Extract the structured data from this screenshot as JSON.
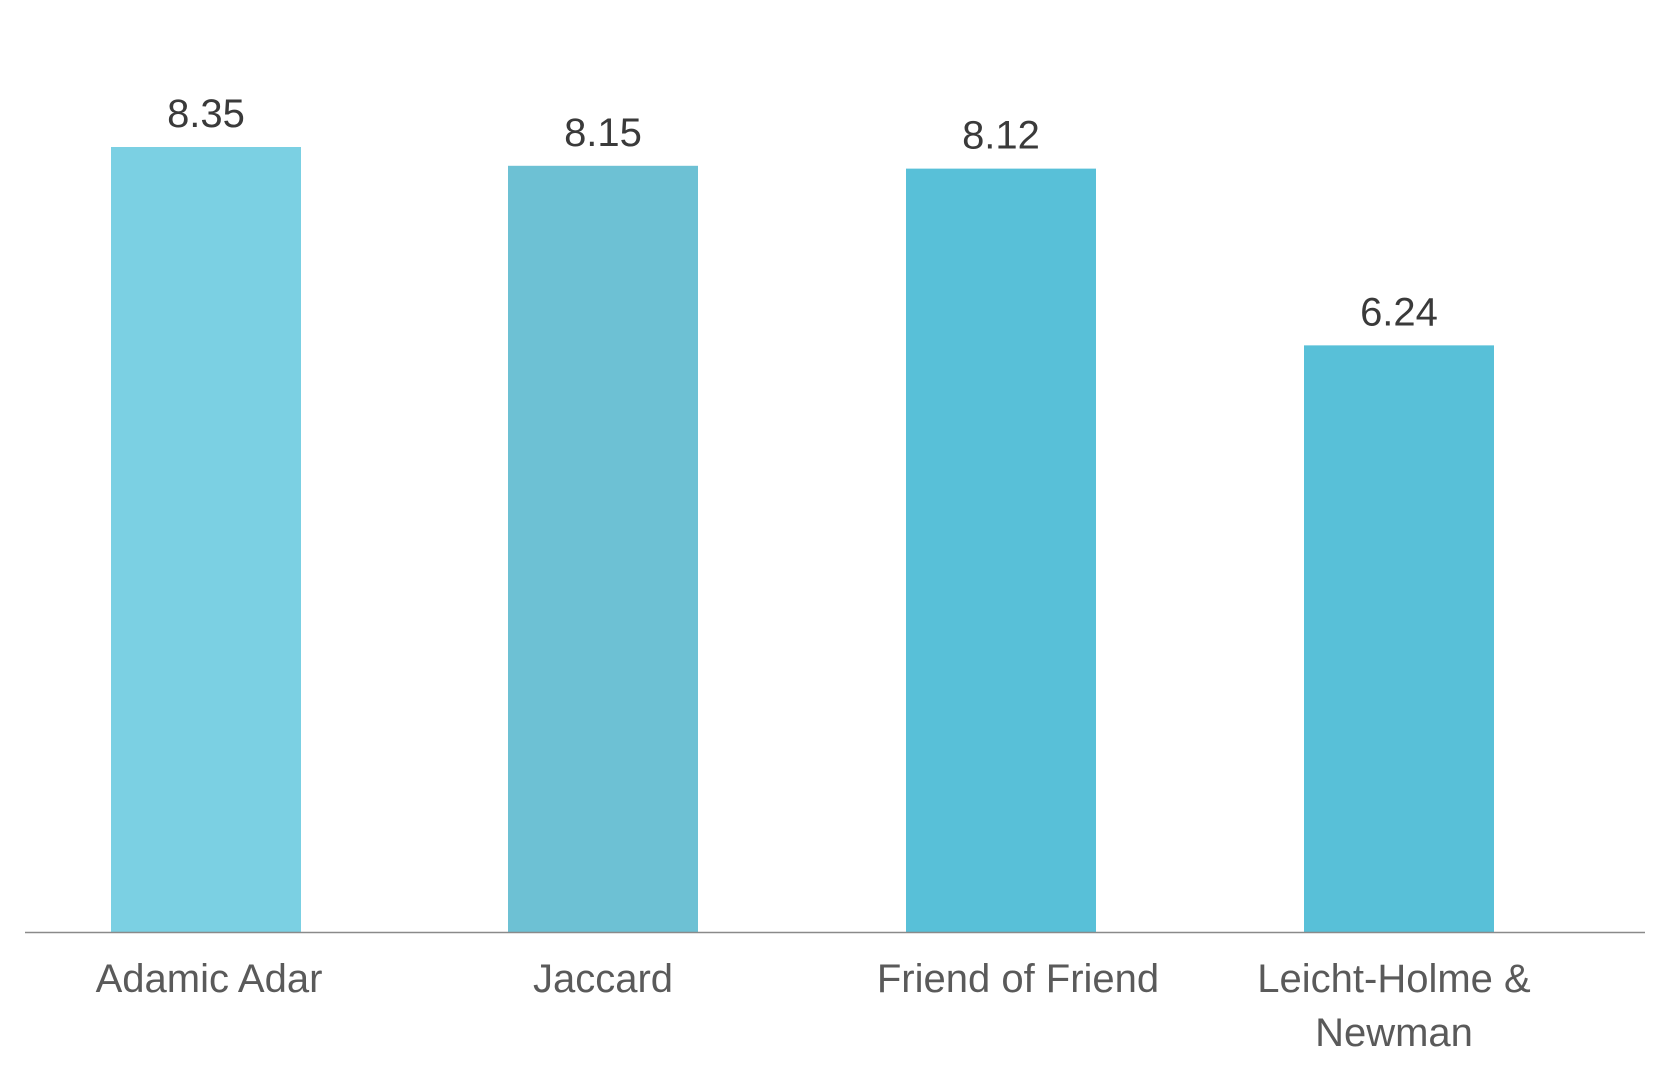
{
  "chart_data": {
    "type": "bar",
    "categories": [
      "Adamic Adar",
      "Jaccard",
      "Friend of Friend",
      "Leicht-Holme & Newman"
    ],
    "category_lines": [
      [
        "Adamic Adar"
      ],
      [
        "Jaccard"
      ],
      [
        "Friend of Friend"
      ],
      [
        "Leicht-Holme &",
        "Newman"
      ]
    ],
    "values": [
      8.35,
      8.15,
      8.12,
      6.24
    ],
    "data_labels": [
      "8.35",
      "8.15",
      "8.12",
      "6.24"
    ],
    "bar_colors": [
      "#7bd0e3",
      "#6dc1d4",
      "#58c0d8",
      "#58c0d8"
    ],
    "title": "",
    "xlabel": "",
    "ylabel": "",
    "ylim": [
      0,
      8.35
    ],
    "grid": false,
    "legend": "none",
    "axis_color": "#8a8a8a"
  }
}
